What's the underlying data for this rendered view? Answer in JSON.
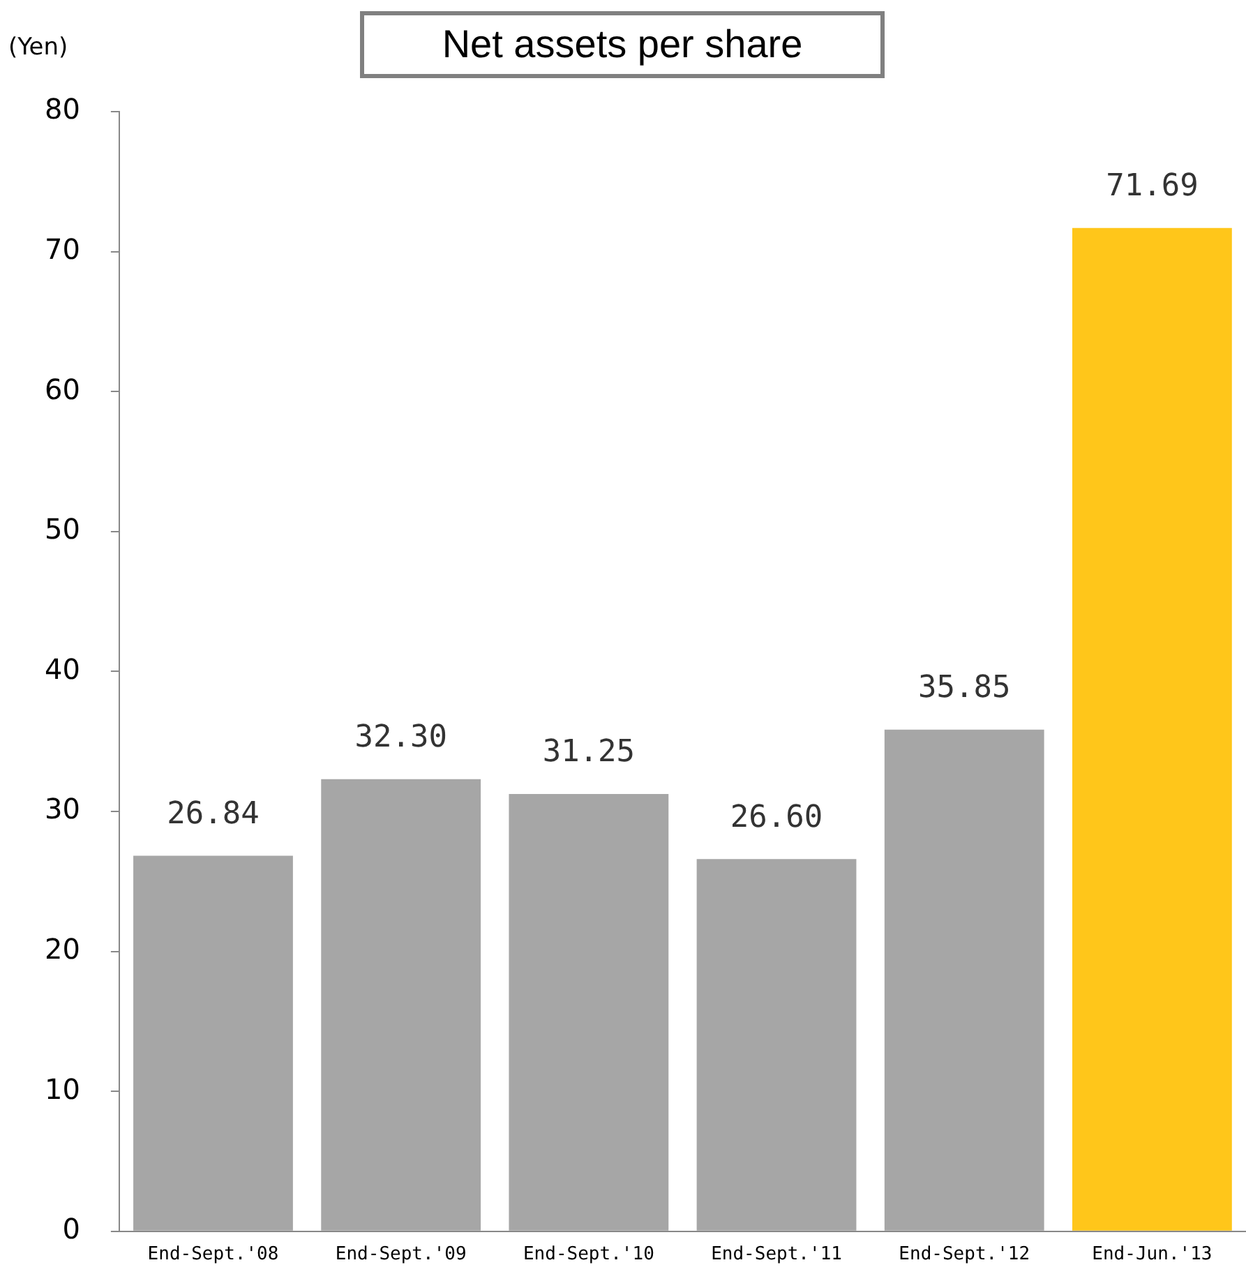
{
  "chart_data": {
    "type": "bar",
    "title": "Net assets per share",
    "ylabel": "(Yen)",
    "categories": [
      "End-Sept.'08",
      "End-Sept.'09",
      "End-Sept.'10",
      "End-Sept.'11",
      "End-Sept.'12",
      "End-Jun.'13"
    ],
    "values": [
      26.84,
      32.3,
      31.25,
      26.6,
      35.85,
      71.69
    ],
    "colors": [
      "#a6a6a6",
      "#a6a6a6",
      "#a6a6a6",
      "#a6a6a6",
      "#a6a6a6",
      "#ffc61a"
    ],
    "value_labels": [
      "26.84",
      "32.30",
      "31.25",
      "26.60",
      "35.85",
      "71.69"
    ],
    "ylim": [
      0,
      80
    ],
    "yticks": [
      0,
      10,
      20,
      30,
      40,
      50,
      60,
      70,
      80
    ],
    "grid": false,
    "legend": false
  }
}
